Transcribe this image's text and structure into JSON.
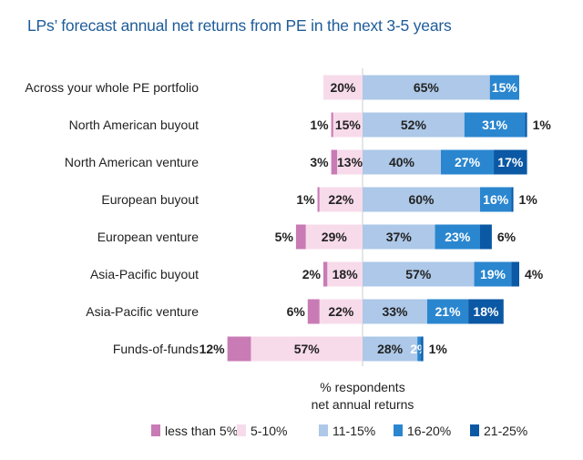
{
  "chart_data": {
    "type": "bar",
    "subtype": "diverging-stacked-horizontal",
    "title": "LPs’ forecast annual net returns from PE in the next 3-5 years",
    "xlabel": [
      "% respondents",
      "net annual returns"
    ],
    "ylabel": "",
    "categories": [
      "Across your whole PE portfolio",
      "North American buyout",
      "North American venture",
      "European buyout",
      "European venture",
      "Asia-Pacific buyout",
      "Asia-Pacific venture",
      "Funds-of-funds"
    ],
    "series": [
      {
        "name": "less than 5%",
        "side": "left",
        "color": "#c97bb5",
        "values": [
          null,
          1,
          3,
          1,
          5,
          2,
          6,
          12
        ]
      },
      {
        "name": "5-10%",
        "side": "left",
        "color": "#f7dbea",
        "values": [
          20,
          15,
          13,
          22,
          29,
          18,
          22,
          57
        ]
      },
      {
        "name": "11-15%",
        "side": "right",
        "color": "#adc8e8",
        "values": [
          65,
          52,
          40,
          60,
          37,
          57,
          33,
          28
        ]
      },
      {
        "name": "16-20%",
        "side": "right",
        "color": "#2a86cf",
        "values": [
          15,
          31,
          27,
          16,
          23,
          19,
          21,
          2
        ]
      },
      {
        "name": "21-25%",
        "side": "right",
        "color": "#0b58a4",
        "values": [
          null,
          1,
          17,
          1,
          6,
          4,
          18,
          1
        ]
      }
    ],
    "legend_position": "bottom",
    "grid": false
  }
}
